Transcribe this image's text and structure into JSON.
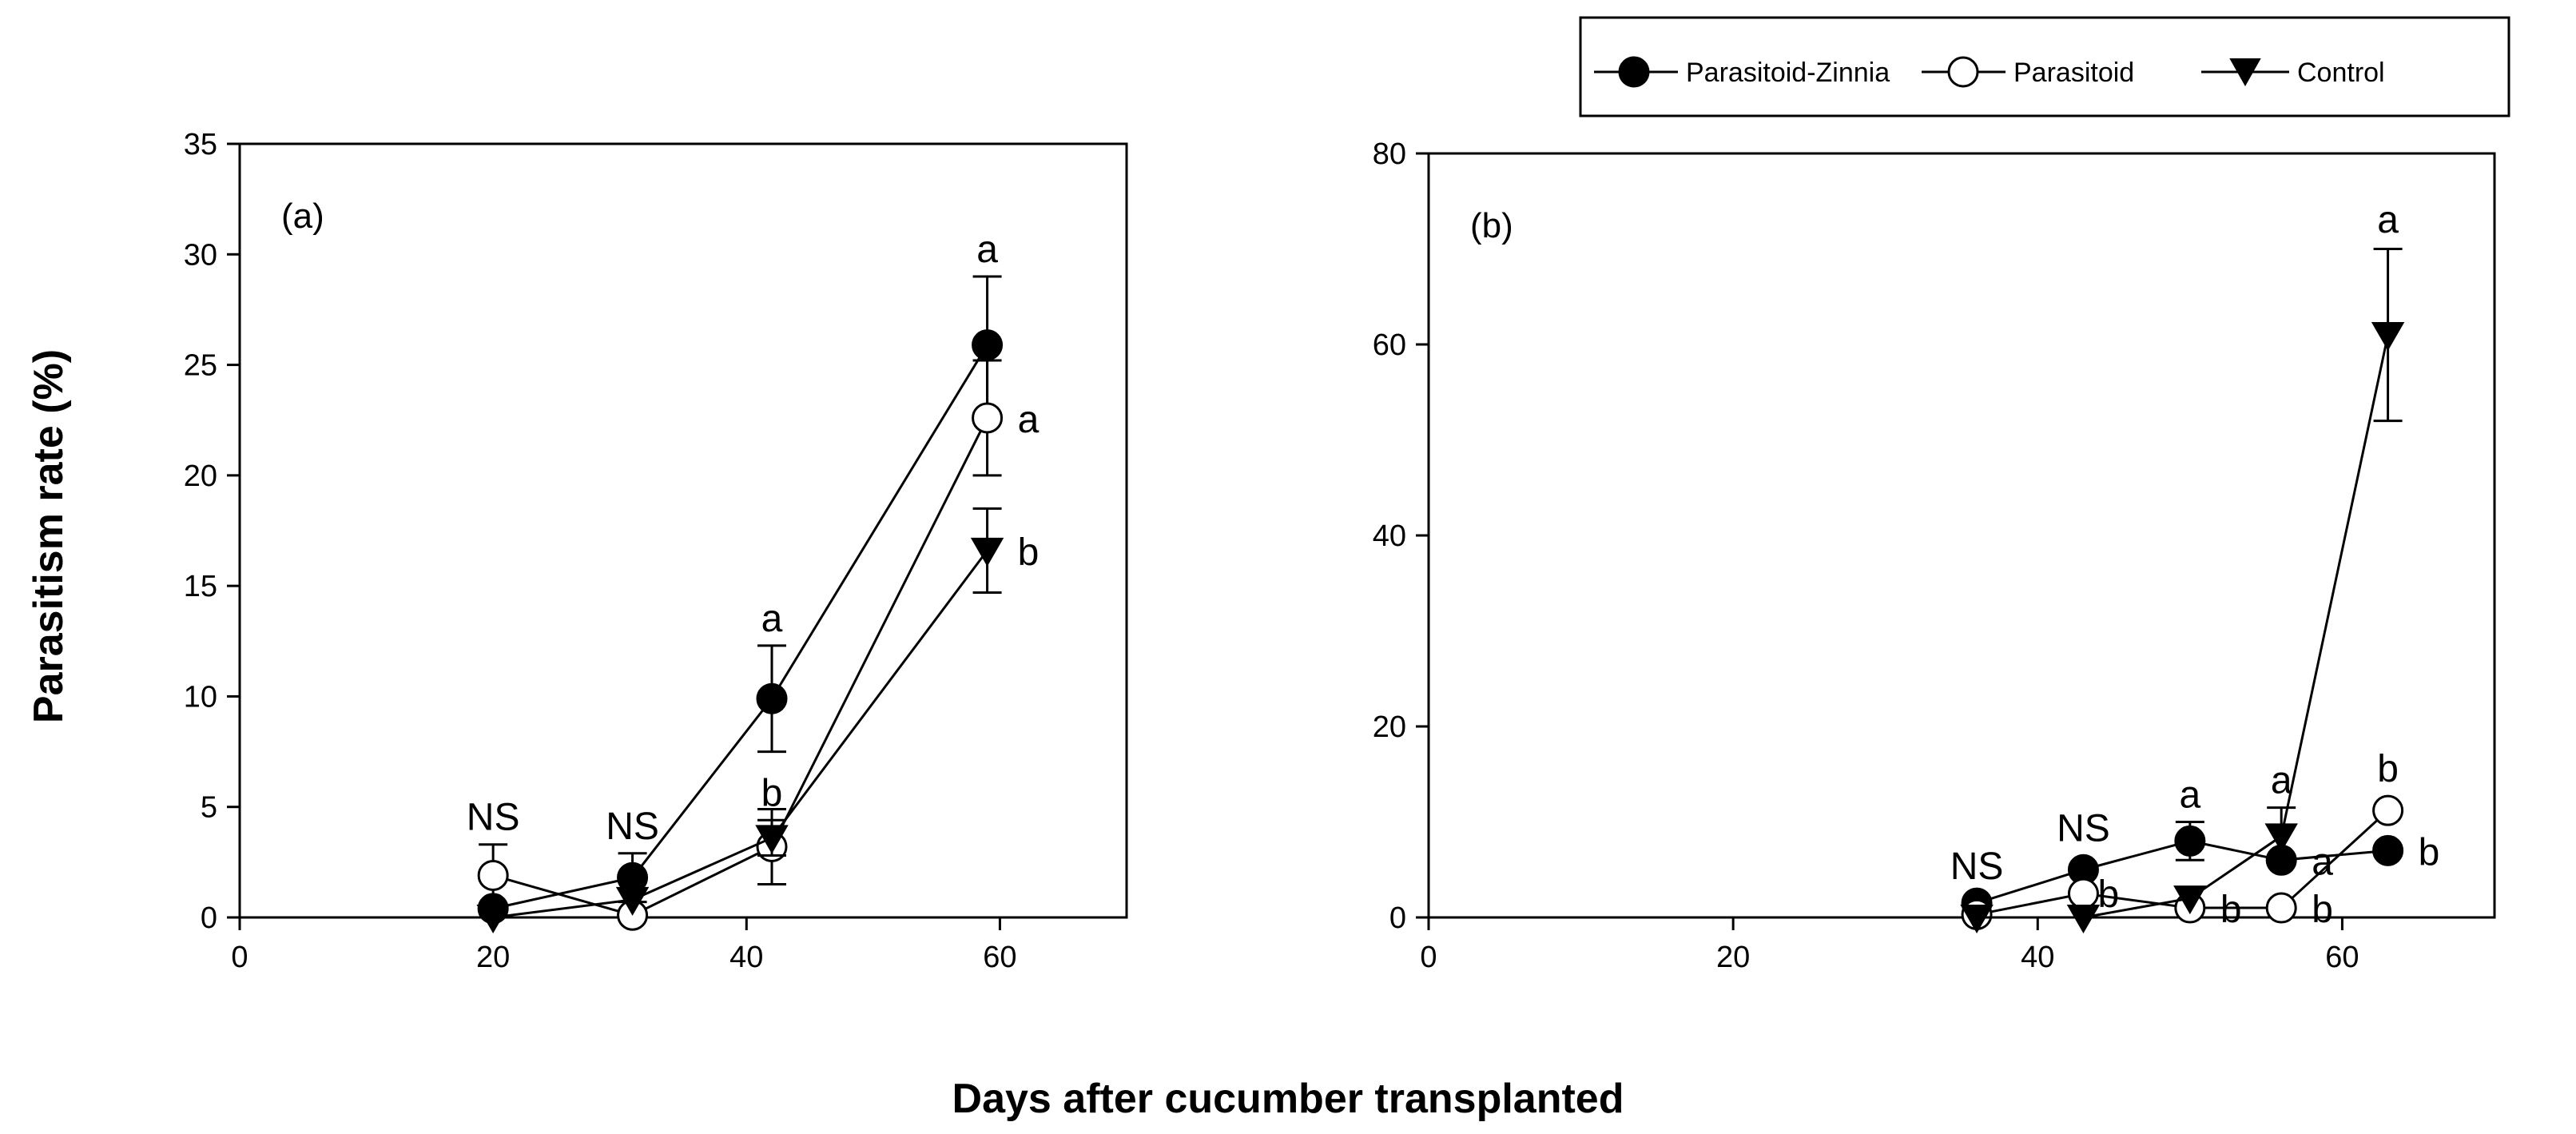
{
  "legend": {
    "entries": [
      {
        "name": "Parasitoid-Zinnia",
        "marker": "filled-circle"
      },
      {
        "name": "Parasitoid",
        "marker": "open-circle"
      },
      {
        "name": "Control",
        "marker": "filled-triangle-down"
      }
    ]
  },
  "ylabel": "Parasitism rate (%)",
  "xlabel": "Days after cucumber transplanted",
  "chart_data": [
    {
      "type": "line",
      "panel_label": "(a)",
      "xlim": [
        0,
        70
      ],
      "ylim": [
        0,
        35
      ],
      "xticks": [
        0,
        20,
        40,
        60
      ],
      "yticks": [
        0,
        5,
        10,
        15,
        20,
        25,
        30,
        35
      ],
      "series": [
        {
          "name": "Parasitoid-Zinnia",
          "marker": "filled-circle",
          "x": [
            20,
            31,
            42,
            59
          ],
          "values": [
            0.4,
            1.8,
            9.9,
            25.9
          ],
          "errors": [
            0,
            1.1,
            2.4,
            3.1
          ]
        },
        {
          "name": "Parasitoid",
          "marker": "open-circle",
          "x": [
            20,
            31,
            42,
            59
          ],
          "values": [
            1.9,
            0.1,
            3.2,
            22.6
          ],
          "errors": [
            1.4,
            0,
            1.7,
            2.6
          ]
        },
        {
          "name": "Control",
          "marker": "filled-triangle-down",
          "x": [
            20,
            31,
            42,
            59
          ],
          "values": [
            0,
            0.8,
            3.6,
            16.6
          ],
          "errors": [
            0,
            0,
            0.8,
            1.9
          ]
        }
      ],
      "annotations": [
        {
          "text": "NS",
          "x": 20,
          "y": 3.3,
          "dx": 0,
          "anchor": "middle",
          "dy": -18
        },
        {
          "text": "NS",
          "x": 31,
          "y": 2.9,
          "dx": 0,
          "anchor": "middle",
          "dy": -18
        },
        {
          "text": "a",
          "x": 42,
          "y": 12.3,
          "dx": 0,
          "anchor": "middle",
          "dy": -18
        },
        {
          "text": "b",
          "x": 42,
          "y": 4.4,
          "dx": 0,
          "anchor": "middle",
          "dy": -18
        },
        {
          "text": "a",
          "x": 59,
          "y": 29,
          "dx": 0,
          "anchor": "middle",
          "dy": -18
        },
        {
          "text": "a",
          "x": 59,
          "y": 22.6,
          "dx": 38,
          "anchor": "start",
          "dy": 18
        },
        {
          "text": "b",
          "x": 59,
          "y": 16.6,
          "dx": 38,
          "anchor": "start",
          "dy": 18
        }
      ]
    },
    {
      "type": "line",
      "panel_label": "(b)",
      "xlim": [
        0,
        70
      ],
      "ylim": [
        0,
        80
      ],
      "xticks": [
        0,
        20,
        40,
        60
      ],
      "yticks": [
        0,
        20,
        40,
        60,
        80
      ],
      "series": [
        {
          "name": "Parasitoid-Zinnia",
          "marker": "filled-circle",
          "x": [
            36,
            43,
            50,
            56,
            63
          ],
          "values": [
            1.5,
            5,
            8,
            6,
            7
          ],
          "errors": [
            0,
            0,
            2,
            0,
            0
          ]
        },
        {
          "name": "Parasitoid",
          "marker": "open-circle",
          "x": [
            36,
            43,
            50,
            56,
            63
          ],
          "values": [
            0.3,
            2.5,
            1,
            1,
            11.2
          ],
          "errors": [
            0,
            0,
            0,
            0,
            0
          ]
        },
        {
          "name": "Control",
          "marker": "filled-triangle-down",
          "x": [
            36,
            43,
            50,
            56,
            63
          ],
          "values": [
            0,
            0,
            2,
            8.5,
            61
          ],
          "errors": [
            0,
            0,
            0,
            3,
            9
          ]
        }
      ],
      "annotations": [
        {
          "text": "NS",
          "x": 36,
          "y": 2.5,
          "dx": 0,
          "anchor": "middle",
          "dy": -18
        },
        {
          "text": "NS",
          "x": 43,
          "y": 6.5,
          "dx": 0,
          "anchor": "middle",
          "dy": -18
        },
        {
          "text": "b",
          "x": 43,
          "y": 2.5,
          "dx": 18,
          "anchor": "start",
          "dy": 17
        },
        {
          "text": "a",
          "x": 50,
          "y": 10,
          "dx": 0,
          "anchor": "middle",
          "dy": -18
        },
        {
          "text": "b",
          "x": 50,
          "y": 1,
          "dx": 38,
          "anchor": "start",
          "dy": 18
        },
        {
          "text": "a",
          "x": 56,
          "y": 11.5,
          "dx": 0,
          "anchor": "middle",
          "dy": -18
        },
        {
          "text": "a",
          "x": 56,
          "y": 6,
          "dx": 38,
          "anchor": "start",
          "dy": 18
        },
        {
          "text": "b",
          "x": 56,
          "y": 1,
          "dx": 38,
          "anchor": "start",
          "dy": 18
        },
        {
          "text": "a",
          "x": 63,
          "y": 70.2,
          "dx": 0,
          "anchor": "middle",
          "dy": -18
        },
        {
          "text": "b",
          "x": 63,
          "y": 11.2,
          "dx": 0,
          "anchor": "middle",
          "dy": -36
        },
        {
          "text": "b",
          "x": 63,
          "y": 7,
          "dx": 38,
          "anchor": "start",
          "dy": 18
        }
      ]
    }
  ]
}
